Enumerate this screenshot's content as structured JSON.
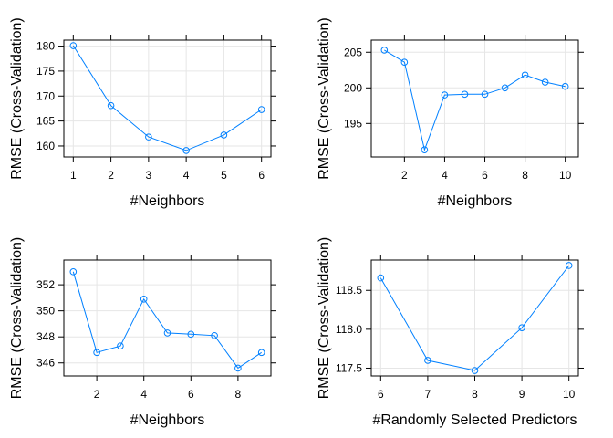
{
  "style": {
    "line_color": "#0080ff",
    "grid_color": "#e6e6e6",
    "frame_color": "#000000"
  },
  "chart_data": [
    {
      "type": "line",
      "xlabel": "#Neighbors",
      "ylabel": "RMSE (Cross-Validation)",
      "xlim": [
        0.75,
        6.25
      ],
      "ylim": [
        157.8,
        181.2
      ],
      "xticks": [
        1,
        2,
        3,
        4,
        5,
        6
      ],
      "yticks": [
        160,
        165,
        170,
        175,
        180
      ],
      "tick_sides": "bottom-left",
      "grid": true,
      "series": [
        {
          "x": [
            1,
            2,
            3,
            4,
            5,
            6
          ],
          "y": [
            180.1,
            168.1,
            161.8,
            159.1,
            162.2,
            167.3
          ]
        }
      ]
    },
    {
      "type": "line",
      "xlabel": "#Neighbors",
      "ylabel": "RMSE (Cross-Validation)",
      "xlim": [
        0.35,
        10.65
      ],
      "ylim": [
        190.3,
        206.7
      ],
      "xticks": [
        2,
        4,
        6,
        8,
        10
      ],
      "yticks": [
        195,
        200,
        205
      ],
      "tick_sides": "top-right",
      "grid": true,
      "series": [
        {
          "x": [
            1,
            2,
            3,
            4,
            5,
            6,
            7,
            8,
            9,
            10
          ],
          "y": [
            205.3,
            203.6,
            191.3,
            199.0,
            199.1,
            199.1,
            200.0,
            201.8,
            200.8,
            200.2
          ]
        }
      ]
    },
    {
      "type": "line",
      "xlabel": "#Neighbors",
      "ylabel": "RMSE (Cross-Validation)",
      "xlim": [
        0.6,
        9.4
      ],
      "ylim": [
        345.0,
        353.9
      ],
      "xticks": [
        2,
        4,
        6,
        8
      ],
      "yticks": [
        346,
        348,
        350,
        352
      ],
      "tick_sides": "bottom-left",
      "grid": true,
      "series": [
        {
          "x": [
            1,
            2,
            3,
            4,
            5,
            6,
            7,
            8,
            9
          ],
          "y": [
            353.0,
            346.8,
            347.3,
            350.9,
            348.3,
            348.2,
            348.1,
            345.6,
            346.8
          ]
        }
      ]
    },
    {
      "type": "line",
      "xlabel": "#Randomly Selected Predictors",
      "ylabel": "RMSE (Cross-Validation)",
      "xlim": [
        5.8,
        10.2
      ],
      "ylim": [
        117.4,
        118.89
      ],
      "xticks": [
        6,
        7,
        8,
        9,
        10
      ],
      "yticks": [
        117.5,
        118.0,
        118.5
      ],
      "ytick_labels": [
        "117.5",
        "118.0",
        "118.5"
      ],
      "tick_sides": "top-right",
      "grid": true,
      "series": [
        {
          "x": [
            6,
            7,
            8,
            9,
            10
          ],
          "y": [
            118.66,
            117.6,
            117.47,
            118.02,
            118.82
          ]
        }
      ]
    }
  ]
}
